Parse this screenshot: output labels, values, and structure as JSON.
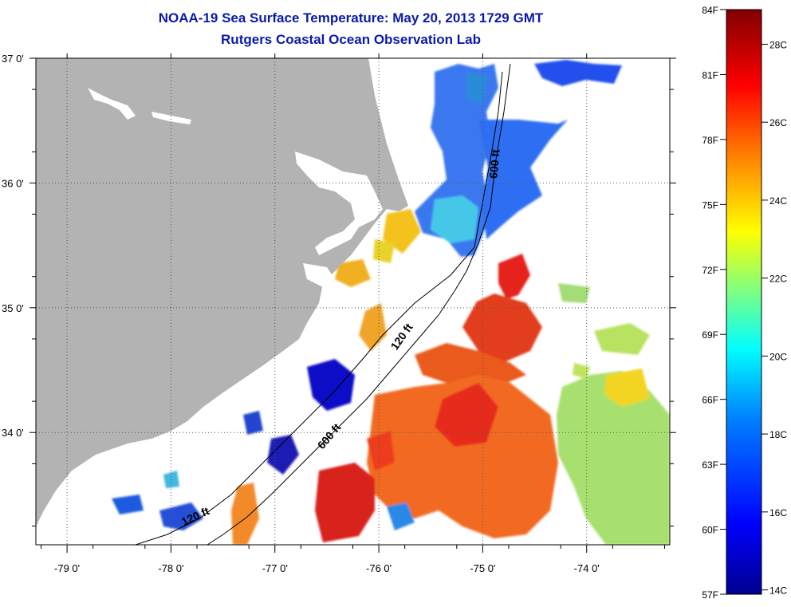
{
  "title": "NOAA-19 Sea Surface Temperature:  May 20, 2013 1729 GMT",
  "subtitle": "Rutgers Coastal Ocean Observation Lab",
  "map": {
    "lon_range": [
      -79.3,
      -73.2
    ],
    "lat_range": [
      33.1,
      37.0
    ],
    "lon_ticks": [
      {
        "value": -79,
        "label": "-79 0'"
      },
      {
        "value": -78,
        "label": "-78 0'"
      },
      {
        "value": -77,
        "label": "-77 0'"
      },
      {
        "value": -76,
        "label": "-76 0'"
      },
      {
        "value": -75,
        "label": "-75 0'"
      },
      {
        "value": -74,
        "label": "-74 0'"
      }
    ],
    "lat_ticks": [
      {
        "value": 37,
        "label": "37 0'"
      },
      {
        "value": 36,
        "label": "36 0'"
      },
      {
        "value": 35,
        "label": "35 0'"
      },
      {
        "value": 34,
        "label": "34 0'"
      }
    ],
    "isobath_labels": [
      {
        "text": "600 ft",
        "lon": -74.85,
        "lat": 36.15
      },
      {
        "text": "120 ft",
        "lon": -75.75,
        "lat": 34.75
      },
      {
        "text": "600 ft",
        "lon": -76.45,
        "lat": 33.95
      },
      {
        "text": "120 ft",
        "lon": -77.75,
        "lat": 33.3
      }
    ],
    "colors": {
      "land": "#b3b3b3",
      "ocean_nodata": "#ffffff",
      "grid": "#555555"
    }
  },
  "colorbar": {
    "f_labels": [
      "84F",
      "81F",
      "78F",
      "75F",
      "72F",
      "69F",
      "66F",
      "63F",
      "60F",
      "57F"
    ],
    "c_labels": [
      "28C",
      "26C",
      "24C",
      "22C",
      "20C",
      "18C",
      "16C",
      "14C"
    ],
    "colors": [
      "#00008f",
      "#0000ff",
      "#0080ff",
      "#00ffff",
      "#80ff80",
      "#ffff00",
      "#ff8000",
      "#ff0000",
      "#800000"
    ]
  }
}
